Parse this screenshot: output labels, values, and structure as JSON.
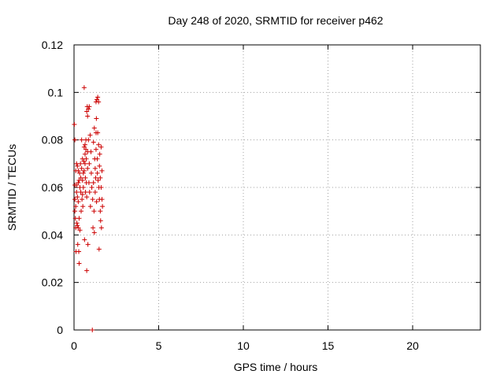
{
  "chart_data": {
    "type": "scatter",
    "title": "Day 248 of 2020, SRMTID for receiver p462",
    "xlabel": "GPS time / hours",
    "ylabel": "SRMTID / TECUs",
    "xlim": [
      0,
      24
    ],
    "ylim": [
      0,
      0.12
    ],
    "x_ticks": [
      "0",
      "5",
      "10",
      "15",
      "20"
    ],
    "x_tick_values": [
      0,
      5,
      10,
      15,
      20
    ],
    "y_ticks": [
      "0",
      "0.02",
      "0.04",
      "0.06",
      "0.08",
      "0.1",
      "0.12"
    ],
    "y_tick_values": [
      0,
      0.02,
      0.04,
      0.06,
      0.08,
      0.1,
      0.12
    ],
    "grid": true,
    "marker": "plus",
    "marker_color": "#cc0000",
    "series": [
      {
        "points": [
          [
            0.02,
            0.0865
          ],
          [
            0.05,
            0.08
          ],
          [
            0.05,
            0.061
          ],
          [
            0.05,
            0.055
          ],
          [
            0.05,
            0.05
          ],
          [
            0.08,
            0.047
          ],
          [
            0.1,
            0.067
          ],
          [
            0.1,
            0.052
          ],
          [
            0.1,
            0.043
          ],
          [
            0.12,
            0.033
          ],
          [
            0.15,
            0.07
          ],
          [
            0.15,
            0.061
          ],
          [
            0.15,
            0.058
          ],
          [
            0.17,
            0.045
          ],
          [
            0.2,
            0.069
          ],
          [
            0.2,
            0.056
          ],
          [
            0.2,
            0.044
          ],
          [
            0.22,
            0.036
          ],
          [
            0.25,
            0.067
          ],
          [
            0.25,
            0.062
          ],
          [
            0.25,
            0.054
          ],
          [
            0.25,
            0.043
          ],
          [
            0.28,
            0.033
          ],
          [
            0.3,
            0.063
          ],
          [
            0.3,
            0.047
          ],
          [
            0.3,
            0.028
          ],
          [
            0.33,
            0.066
          ],
          [
            0.35,
            0.06
          ],
          [
            0.35,
            0.042
          ],
          [
            0.38,
            0.07
          ],
          [
            0.4,
            0.064
          ],
          [
            0.4,
            0.058
          ],
          [
            0.42,
            0.05
          ],
          [
            0.45,
            0.08
          ],
          [
            0.45,
            0.068
          ],
          [
            0.47,
            0.055
          ],
          [
            0.5,
            0.072
          ],
          [
            0.5,
            0.063
          ],
          [
            0.5,
            0.057
          ],
          [
            0.52,
            0.052
          ],
          [
            0.55,
            0.066
          ],
          [
            0.55,
            0.06
          ],
          [
            0.58,
            0.071
          ],
          [
            0.6,
            0.102
          ],
          [
            0.6,
            0.077
          ],
          [
            0.6,
            0.067
          ],
          [
            0.62,
            0.038
          ],
          [
            0.65,
            0.078
          ],
          [
            0.65,
            0.074
          ],
          [
            0.65,
            0.07
          ],
          [
            0.67,
            0.064
          ],
          [
            0.68,
            0.058
          ],
          [
            0.7,
            0.08
          ],
          [
            0.7,
            0.076
          ],
          [
            0.72,
            0.072
          ],
          [
            0.73,
            0.062
          ],
          [
            0.75,
            0.092
          ],
          [
            0.75,
            0.056
          ],
          [
            0.75,
            0.025
          ],
          [
            0.78,
            0.094
          ],
          [
            0.8,
            0.09
          ],
          [
            0.8,
            0.075
          ],
          [
            0.8,
            0.068
          ],
          [
            0.82,
            0.036
          ],
          [
            0.85,
            0.093
          ],
          [
            0.85,
            0.08
          ],
          [
            0.88,
            0.062
          ],
          [
            0.9,
            0.094
          ],
          [
            0.9,
            0.07
          ],
          [
            0.92,
            0.058
          ],
          [
            0.95,
            0.082
          ],
          [
            0.97,
            0.052
          ],
          [
            1.0,
            0.075
          ],
          [
            1.02,
            0.066
          ],
          [
            1.05,
            0.06
          ],
          [
            1.08,
            0.0
          ],
          [
            1.1,
            0.055
          ],
          [
            1.12,
            0.043
          ],
          [
            1.15,
            0.079
          ],
          [
            1.15,
            0.062
          ],
          [
            1.18,
            0.05
          ],
          [
            1.2,
            0.085
          ],
          [
            1.2,
            0.041
          ],
          [
            1.22,
            0.072
          ],
          [
            1.25,
            0.068
          ],
          [
            1.25,
            0.058
          ],
          [
            1.28,
            0.064
          ],
          [
            1.3,
            0.096
          ],
          [
            1.3,
            0.083
          ],
          [
            1.3,
            0.076
          ],
          [
            1.32,
            0.089
          ],
          [
            1.33,
            0.054
          ],
          [
            1.35,
            0.097
          ],
          [
            1.37,
            0.072
          ],
          [
            1.38,
            0.066
          ],
          [
            1.4,
            0.098
          ],
          [
            1.4,
            0.083
          ],
          [
            1.42,
            0.063
          ],
          [
            1.45,
            0.096
          ],
          [
            1.45,
            0.078
          ],
          [
            1.47,
            0.06
          ],
          [
            1.48,
            0.034
          ],
          [
            1.5,
            0.069
          ],
          [
            1.5,
            0.055
          ],
          [
            1.52,
            0.074
          ],
          [
            1.55,
            0.064
          ],
          [
            1.55,
            0.05
          ],
          [
            1.57,
            0.046
          ],
          [
            1.6,
            0.077
          ],
          [
            1.6,
            0.06
          ],
          [
            1.62,
            0.043
          ],
          [
            1.65,
            0.067
          ],
          [
            1.65,
            0.055
          ],
          [
            1.68,
            0.052
          ]
        ]
      }
    ]
  }
}
